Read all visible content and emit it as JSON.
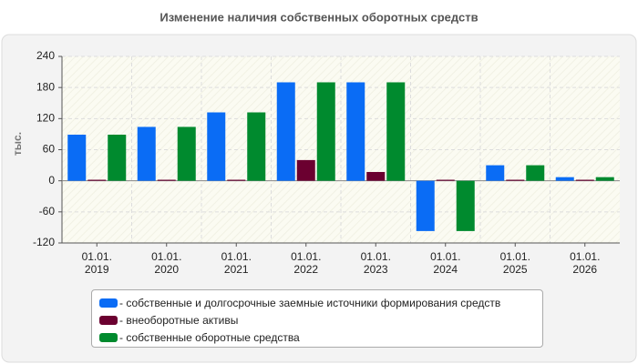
{
  "chart_data": {
    "type": "bar",
    "title": "Изменение наличия собственных оборотных средств",
    "ylabel": "тыс.",
    "categories": [
      "01.01.\n2019",
      "01.01.\n2020",
      "01.01.\n2021",
      "01.01.\n2022",
      "01.01.\n2023",
      "01.01.\n2024",
      "01.01.\n2025",
      "01.01.\n2026"
    ],
    "series": [
      {
        "name": "- собственные и долгосрочные заемные источники формирования средств",
        "color": "#0a6cf5",
        "values": [
          89,
          104,
          132,
          190,
          190,
          -97,
          30,
          7
        ]
      },
      {
        "name": "- внеоборотные активы",
        "color": "#6b0030",
        "values": [
          2,
          2,
          2,
          40,
          17,
          2,
          2,
          2
        ]
      },
      {
        "name": "- собственные оборотные средства",
        "color": "#008a2e",
        "values": [
          89,
          104,
          132,
          190,
          190,
          -97,
          30,
          7
        ]
      }
    ],
    "ylim": [
      -120,
      240
    ],
    "yticks": [
      -120,
      -60,
      0,
      60,
      120,
      180,
      240
    ],
    "grid": true
  }
}
